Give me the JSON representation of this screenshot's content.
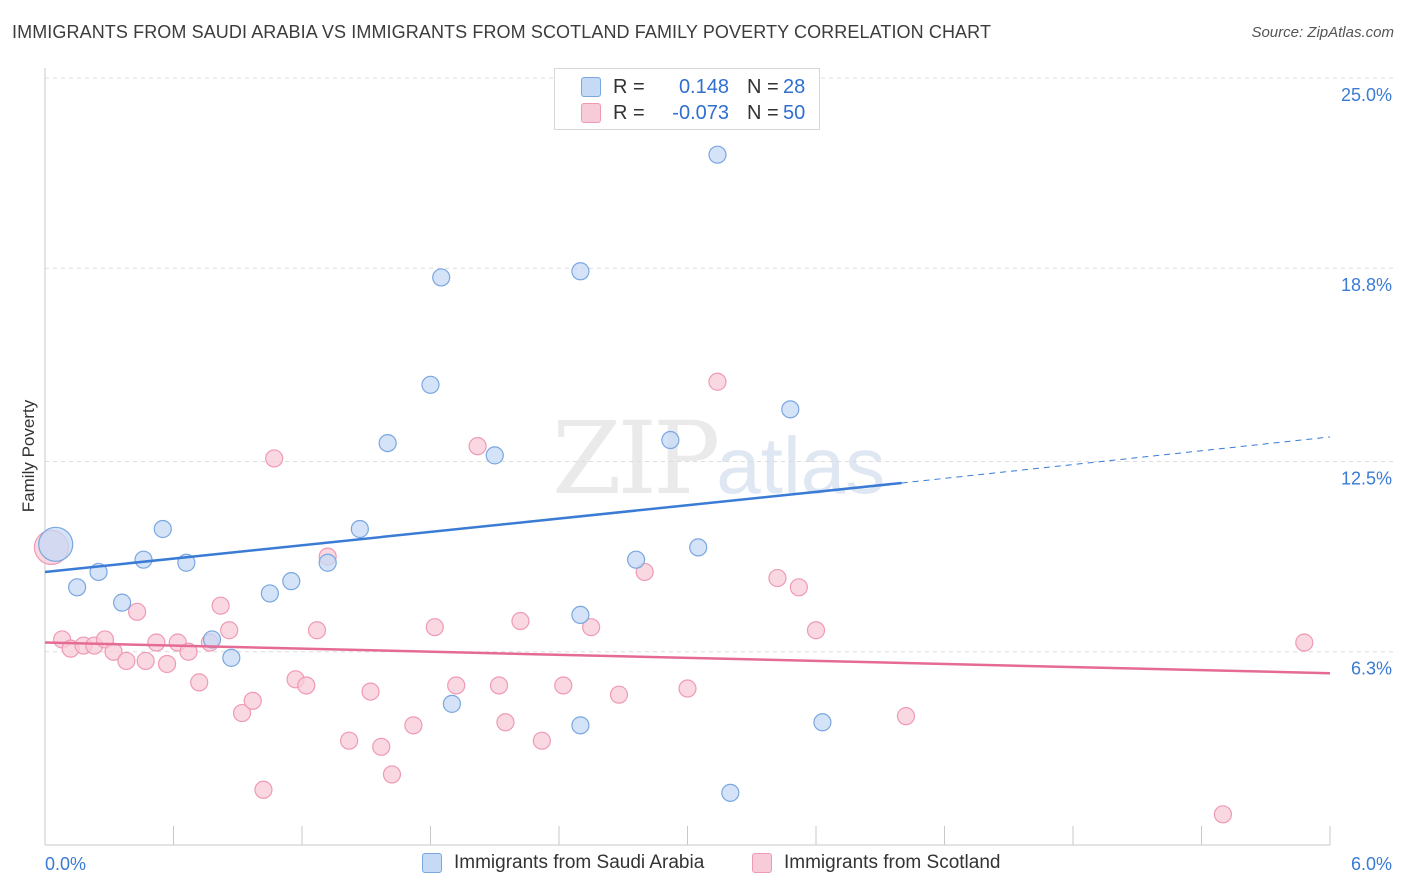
{
  "title": "IMMIGRANTS FROM SAUDI ARABIA VS IMMIGRANTS FROM SCOTLAND FAMILY POVERTY CORRELATION CHART",
  "source": "Source: ZipAtlas.com",
  "watermark": {
    "zip": "ZIP",
    "atlas": "atlas"
  },
  "legend_top": {
    "rows": [
      {
        "r_label": "R =",
        "r_value": "0.148",
        "n_label": "N =",
        "n_value": "28",
        "color": "#aac8f0"
      },
      {
        "r_label": "R =",
        "r_value": "-0.073",
        "n_label": "N =",
        "n_value": "50",
        "color": "#f5b8cb"
      }
    ]
  },
  "chart_data": {
    "type": "scatter",
    "title": "IMMIGRANTS FROM SAUDI ARABIA VS IMMIGRANTS FROM SCOTLAND FAMILY POVERTY CORRELATION CHART",
    "xlabel": "",
    "ylabel": "Family Poverty",
    "xlim": [
      0,
      6.0
    ],
    "ylim": [
      0,
      25.0
    ],
    "y_ticks": [
      6.3,
      12.5,
      18.8,
      25.0
    ],
    "y_tick_labels": [
      "6.3%",
      "12.5%",
      "18.8%",
      "25.0%"
    ],
    "x_tick_labels": [
      "0.0%",
      "6.0%"
    ],
    "grid": true,
    "legend_position": "bottom",
    "series": [
      {
        "name": "Immigrants from Saudi Arabia",
        "color": "#3a7bd5",
        "fill": "#c5daf5",
        "stroke": "#7aa7e0",
        "trend": {
          "x0": 0.0,
          "y0": 8.9,
          "x1": 4.0,
          "y1": 11.8,
          "dash_to_x": 6.0,
          "dash_to_y": 13.3
        },
        "points": [
          {
            "x": 0.05,
            "y": 9.8,
            "big": true
          },
          {
            "x": 0.15,
            "y": 8.4
          },
          {
            "x": 0.25,
            "y": 8.9
          },
          {
            "x": 0.36,
            "y": 7.9
          },
          {
            "x": 0.46,
            "y": 9.3
          },
          {
            "x": 0.55,
            "y": 10.3
          },
          {
            "x": 0.66,
            "y": 9.2
          },
          {
            "x": 0.78,
            "y": 6.7
          },
          {
            "x": 0.87,
            "y": 6.1
          },
          {
            "x": 1.05,
            "y": 8.2
          },
          {
            "x": 1.15,
            "y": 8.6
          },
          {
            "x": 1.32,
            "y": 9.2
          },
          {
            "x": 1.47,
            "y": 10.3
          },
          {
            "x": 1.6,
            "y": 13.1
          },
          {
            "x": 1.8,
            "y": 15.0
          },
          {
            "x": 1.85,
            "y": 18.5
          },
          {
            "x": 1.9,
            "y": 4.6
          },
          {
            "x": 2.1,
            "y": 12.7
          },
          {
            "x": 2.5,
            "y": 7.5
          },
          {
            "x": 2.5,
            "y": 3.9
          },
          {
            "x": 2.5,
            "y": 18.7
          },
          {
            "x": 2.76,
            "y": 9.3
          },
          {
            "x": 2.92,
            "y": 13.2
          },
          {
            "x": 3.05,
            "y": 9.7
          },
          {
            "x": 3.14,
            "y": 22.5
          },
          {
            "x": 3.2,
            "y": 1.7
          },
          {
            "x": 3.48,
            "y": 14.2
          },
          {
            "x": 3.63,
            "y": 4.0
          }
        ]
      },
      {
        "name": "Immigrants from Scotland",
        "color": "#e56b95",
        "fill": "#f8cbd8",
        "stroke": "#ef9ab5",
        "trend": {
          "x0": 0.0,
          "y0": 6.6,
          "x1": 6.0,
          "y1": 5.6
        },
        "points": [
          {
            "x": 0.03,
            "y": 9.7,
            "big": true
          },
          {
            "x": 0.08,
            "y": 6.7
          },
          {
            "x": 0.12,
            "y": 6.4
          },
          {
            "x": 0.18,
            "y": 6.5
          },
          {
            "x": 0.23,
            "y": 6.5
          },
          {
            "x": 0.28,
            "y": 6.7
          },
          {
            "x": 0.32,
            "y": 6.3
          },
          {
            "x": 0.38,
            "y": 6.0
          },
          {
            "x": 0.43,
            "y": 7.6
          },
          {
            "x": 0.47,
            "y": 6.0
          },
          {
            "x": 0.52,
            "y": 6.6
          },
          {
            "x": 0.57,
            "y": 5.9
          },
          {
            "x": 0.62,
            "y": 6.6
          },
          {
            "x": 0.67,
            "y": 6.3
          },
          {
            "x": 0.72,
            "y": 5.3
          },
          {
            "x": 0.77,
            "y": 6.6
          },
          {
            "x": 0.82,
            "y": 7.8
          },
          {
            "x": 0.86,
            "y": 7.0
          },
          {
            "x": 0.92,
            "y": 4.3
          },
          {
            "x": 0.97,
            "y": 4.7
          },
          {
            "x": 1.02,
            "y": 1.8
          },
          {
            "x": 1.07,
            "y": 12.6
          },
          {
            "x": 1.17,
            "y": 5.4
          },
          {
            "x": 1.22,
            "y": 5.2
          },
          {
            "x": 1.27,
            "y": 7.0
          },
          {
            "x": 1.32,
            "y": 9.4
          },
          {
            "x": 1.42,
            "y": 3.4
          },
          {
            "x": 1.52,
            "y": 5.0
          },
          {
            "x": 1.57,
            "y": 3.2
          },
          {
            "x": 1.62,
            "y": 2.3
          },
          {
            "x": 1.72,
            "y": 3.9
          },
          {
            "x": 1.82,
            "y": 7.1
          },
          {
            "x": 1.92,
            "y": 5.2
          },
          {
            "x": 2.02,
            "y": 13.0
          },
          {
            "x": 2.12,
            "y": 5.2
          },
          {
            "x": 2.15,
            "y": 4.0
          },
          {
            "x": 2.22,
            "y": 7.3
          },
          {
            "x": 2.32,
            "y": 3.4
          },
          {
            "x": 2.42,
            "y": 5.2
          },
          {
            "x": 2.55,
            "y": 7.1
          },
          {
            "x": 2.68,
            "y": 4.9
          },
          {
            "x": 2.8,
            "y": 8.9
          },
          {
            "x": 3.0,
            "y": 5.1
          },
          {
            "x": 3.14,
            "y": 15.1
          },
          {
            "x": 3.42,
            "y": 8.7
          },
          {
            "x": 3.52,
            "y": 8.4
          },
          {
            "x": 3.6,
            "y": 7.0
          },
          {
            "x": 4.02,
            "y": 4.2
          },
          {
            "x": 5.5,
            "y": 1.0
          },
          {
            "x": 5.88,
            "y": 6.6
          }
        ]
      }
    ]
  }
}
